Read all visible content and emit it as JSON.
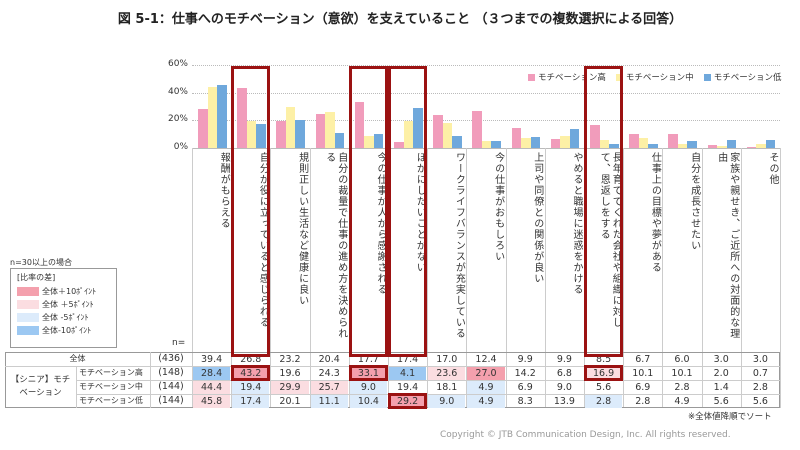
{
  "title": "図 5-1：仕事へのモチベーション（意欲）を支えていること （３つまでの複数選択による回答）",
  "legend_note": "n=30以上の場合",
  "diff_legend": {
    "title": "[比率の差]",
    "items": [
      {
        "label": "全体＋10ﾎﾟｲﾝﾄ",
        "color": "#f4a0ad"
      },
      {
        "label": "全体 ＋5ﾎﾟｲﾝﾄ",
        "color": "#fbdde1"
      },
      {
        "label": "全体 -5ﾎﾟｲﾝﾄ",
        "color": "#dcebfb"
      },
      {
        "label": "全体-10ﾎﾟｲﾝﾄ",
        "color": "#9cc8f2"
      }
    ]
  },
  "n_label": "n=",
  "group_label": "【シニア】モチベーション",
  "sort_note": "※全体値降順でソート",
  "copyright": "Copyright © JTB Communication Design, Inc. All rights reserved.",
  "chart_data": {
    "type": "bar",
    "ylim": [
      0,
      60
    ],
    "yticks": [
      "0%",
      "20%",
      "40%",
      "60%"
    ],
    "grid": true,
    "legend_position": "top-right",
    "categories": [
      "報酬がもらえる",
      "自分が役に立っていると感じられる",
      "規則正しい生活など健康に良い",
      "自分の裁量で仕事の進め方を決められる",
      "今の仕事が人から感謝される",
      "ほかにしたいことがない",
      "ワークライフバランスが充実している",
      "今の仕事がおもしろい",
      "上司や同僚との関係が良い",
      "やめると職場に迷惑をかける",
      "長年育ててくれた会社や組織に対して、恩返しをする",
      "仕事上の目標や夢がある",
      "自分を成長させたい",
      "家族や親せき、ご近所への対面的な理由",
      "その他"
    ],
    "total": {
      "name": "全体",
      "n": "(436)",
      "values": [
        39.4,
        26.8,
        23.2,
        20.4,
        17.7,
        17.4,
        17.0,
        12.4,
        9.9,
        9.9,
        8.5,
        6.7,
        6.0,
        3.0,
        3.0
      ]
    },
    "series": [
      {
        "name": "モチベーション高",
        "n": "(148)",
        "color": "#f19cbb",
        "values": [
          28.4,
          43.2,
          19.6,
          24.3,
          33.1,
          4.1,
          23.6,
          27.0,
          14.2,
          6.8,
          16.9,
          10.1,
          10.1,
          2.0,
          0.7
        ]
      },
      {
        "name": "モチベーション中",
        "n": "(144)",
        "color": "#fdf0a6",
        "values": [
          44.4,
          19.4,
          29.9,
          25.7,
          9.0,
          19.4,
          18.1,
          4.9,
          6.9,
          9.0,
          5.6,
          6.9,
          2.8,
          1.4,
          2.8
        ]
      },
      {
        "name": "モチベーション低",
        "n": "(144)",
        "color": "#6fa8dc",
        "values": [
          45.8,
          17.4,
          20.1,
          11.1,
          10.4,
          29.2,
          9.0,
          4.9,
          8.3,
          13.9,
          2.8,
          2.8,
          4.9,
          5.6,
          5.6
        ]
      }
    ],
    "highlighted_columns": [
      1,
      4,
      5,
      10
    ],
    "highlighted_cells": [
      [
        0,
        1
      ],
      [
        0,
        4
      ],
      [
        2,
        5
      ],
      [
        0,
        10
      ]
    ]
  }
}
